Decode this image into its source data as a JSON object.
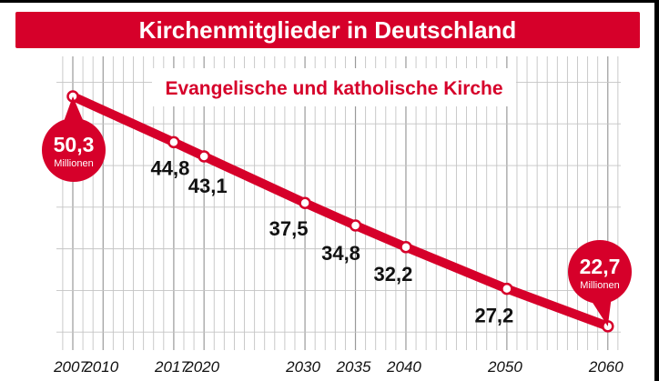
{
  "chart_data": {
    "type": "line",
    "title": "Kirchenmitglieder in Deutschland",
    "subtitle": "Evangelische und katholische Kirche",
    "x": [
      2007,
      2017,
      2020,
      2030,
      2035,
      2040,
      2050,
      2060
    ],
    "values": [
      50.3,
      44.8,
      43.1,
      37.5,
      34.8,
      32.2,
      27.2,
      22.7
    ],
    "value_labels": [
      "50,3",
      "44,8",
      "43,1",
      "37,5",
      "34,8",
      "32,2",
      "27,2",
      "22,7"
    ],
    "x_tick_labels": [
      "2007",
      "2010",
      "2017",
      "2020",
      "2030",
      "2035",
      "2040",
      "2050",
      "2060"
    ],
    "x_ticks": [
      2007,
      2010,
      2017,
      2020,
      2030,
      2035,
      2040,
      2050,
      2060
    ],
    "start_callout": {
      "value": "50,3",
      "unit": "Millionen"
    },
    "end_callout": {
      "value": "22,7",
      "unit": "Millionen"
    },
    "xlim": [
      2005,
      2061
    ],
    "ylim": [
      18,
      52
    ],
    "grid": true,
    "line_color": "#d6002a"
  }
}
